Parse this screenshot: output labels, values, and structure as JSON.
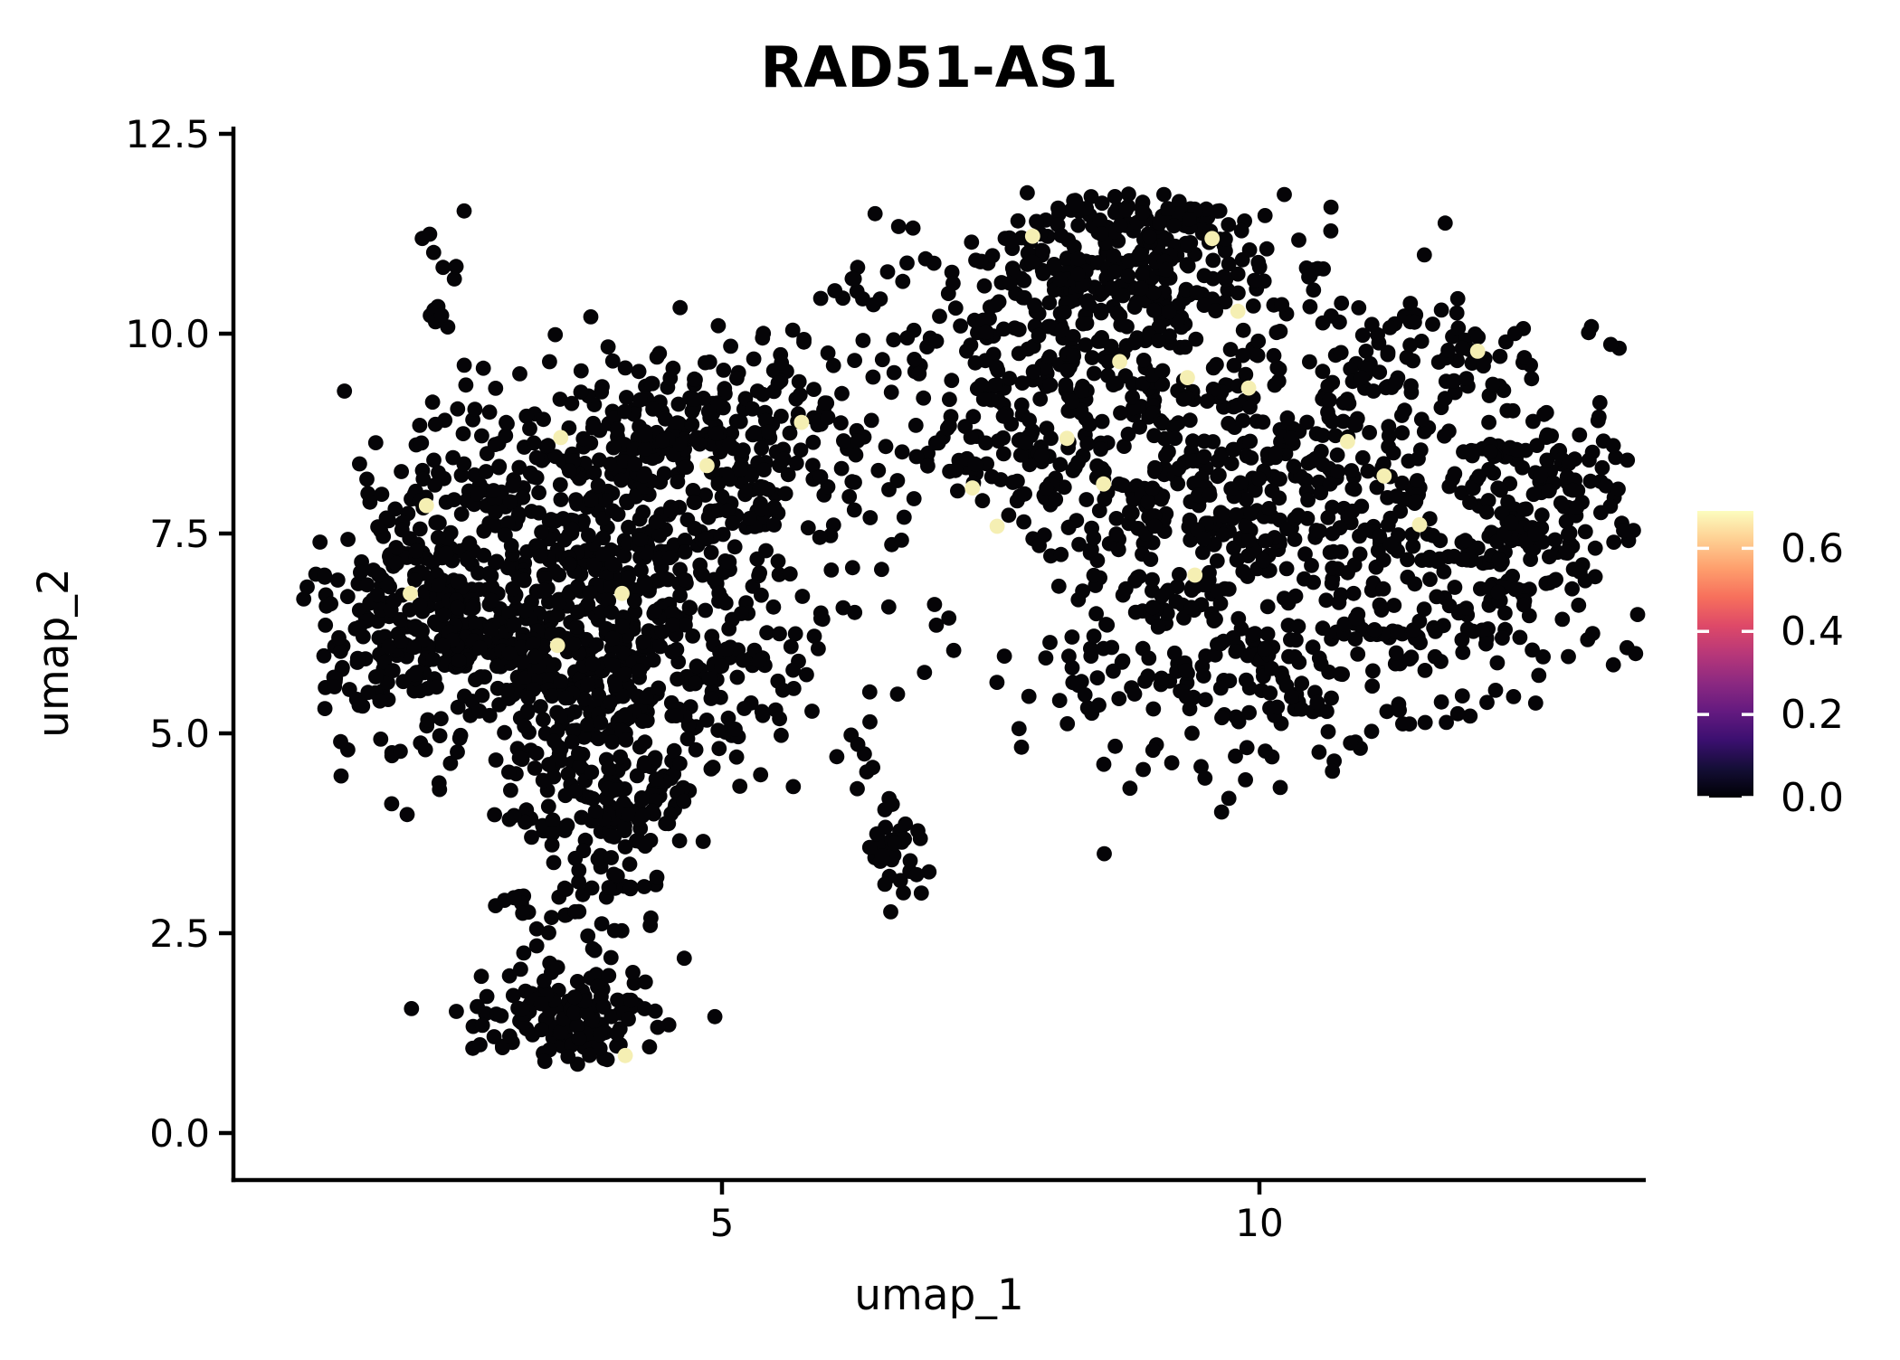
{
  "title": "RAD51-AS1",
  "axes": {
    "x_label": "umap_1",
    "y_label": "umap_2",
    "x_ticks": [
      {
        "value": 5,
        "label": "5"
      },
      {
        "value": 10,
        "label": "10"
      }
    ],
    "y_ticks": [
      {
        "value": 0.0,
        "label": "0.0"
      },
      {
        "value": 2.5,
        "label": "2.5"
      },
      {
        "value": 5.0,
        "label": "5.0"
      },
      {
        "value": 7.5,
        "label": "7.5"
      },
      {
        "value": 10.0,
        "label": "10.0"
      },
      {
        "value": 12.5,
        "label": "12.5"
      }
    ]
  },
  "colorbar": {
    "colormap": "magma",
    "vmax": 0.69,
    "tick_values": [
      0.0,
      0.2,
      0.4,
      0.6
    ],
    "tick_labels": [
      "0.0",
      "0.2",
      "0.4",
      "0.6"
    ],
    "gradient_bottom_to_top": [
      "#000004",
      "#140e36",
      "#3b0f70",
      "#641a80",
      "#8c2981",
      "#b73779",
      "#de4968",
      "#f7705c",
      "#fe9f6d",
      "#fecf92",
      "#fcfdbf"
    ]
  },
  "chart_data": {
    "type": "scatter",
    "title": "RAD51-AS1",
    "xlabel": "umap_1",
    "ylabel": "umap_2",
    "xlim": [
      0.45,
      13.6
    ],
    "ylim": [
      -0.6,
      12.6
    ],
    "x_ticks": [
      5,
      10
    ],
    "y_ticks": [
      0.0,
      2.5,
      5.0,
      7.5,
      10.0,
      12.5
    ],
    "grid": false,
    "legend": "colorbar-right",
    "point_color": "#050407",
    "highlight_color": "#f5efb3",
    "background": "#ffffff",
    "point_radius_px": 8.4,
    "n_points_estimate": 3200,
    "seed": 7,
    "clusters": [
      {
        "name": "left-core",
        "n": 400,
        "cx": 3.2,
        "cy": 6.3,
        "sdx": 0.9,
        "sdy": 0.8
      },
      {
        "name": "left-upper",
        "n": 300,
        "cx": 3.8,
        "cy": 8.0,
        "sdx": 0.9,
        "sdy": 0.7
      },
      {
        "name": "left-top-right",
        "n": 190,
        "cx": 5.0,
        "cy": 8.8,
        "sdx": 0.7,
        "sdy": 0.6
      },
      {
        "name": "left-west",
        "n": 180,
        "cx": 2.3,
        "cy": 6.6,
        "sdx": 0.55,
        "sdy": 0.85
      },
      {
        "name": "left-southeast",
        "n": 160,
        "cx": 4.6,
        "cy": 6.0,
        "sdx": 0.8,
        "sdy": 0.8
      },
      {
        "name": "tail-top",
        "n": 120,
        "cx": 4.0,
        "cy": 4.7,
        "sdx": 0.55,
        "sdy": 0.55
      },
      {
        "name": "tail-neck",
        "n": 110,
        "from": [
          4.25,
          4.4
        ],
        "to": [
          3.55,
          2.5
        ],
        "sd": 0.33
      },
      {
        "name": "tail-bottom-blob",
        "n": 135,
        "cx": 3.55,
        "cy": 1.45,
        "sdx": 0.45,
        "sdy": 0.33
      },
      {
        "name": "left-top-spur",
        "n": 14,
        "cx": 2.38,
        "cy": 10.55,
        "sdx": 0.13,
        "sdy": 0.45
      },
      {
        "name": "mid-top-pair",
        "n": 5,
        "cx": 6.28,
        "cy": 10.33,
        "sdx": 0.14,
        "sdy": 0.16
      },
      {
        "name": "right-core",
        "n": 360,
        "cx": 9.6,
        "cy": 8.0,
        "sdx": 1.05,
        "sdy": 0.95
      },
      {
        "name": "right-top-ridge",
        "n": 250,
        "cx": 8.9,
        "cy": 10.85,
        "sdx": 0.75,
        "sdy": 0.5
      },
      {
        "name": "right-top-clump",
        "n": 26,
        "cx": 9.0,
        "cy": 11.45,
        "sdx": 0.45,
        "sdy": 0.18
      },
      {
        "name": "right-upper-left",
        "n": 200,
        "cx": 8.3,
        "cy": 9.2,
        "sdx": 0.8,
        "sdy": 0.8
      },
      {
        "name": "right-east-arm",
        "n": 200,
        "cx": 11.6,
        "cy": 7.3,
        "sdx": 0.9,
        "sdy": 0.9
      },
      {
        "name": "far-right-ridge",
        "n": 130,
        "cx": 12.7,
        "cy": 7.7,
        "sdx": 0.42,
        "sdy": 0.75
      },
      {
        "name": "right-bottom-band",
        "n": 170,
        "cx": 9.7,
        "cy": 5.8,
        "sdx": 1.3,
        "sdy": 0.5
      },
      {
        "name": "right-top-east",
        "n": 110,
        "cx": 11.3,
        "cy": 9.6,
        "sdx": 0.8,
        "sdy": 0.55
      },
      {
        "name": "bridge-top-sparse",
        "n": 45,
        "cx": 7.3,
        "cy": 10.2,
        "sdx": 0.6,
        "sdy": 0.7
      },
      {
        "name": "right-low-strays",
        "n": 18,
        "cx": 10.0,
        "cy": 4.6,
        "sdx": 0.7,
        "sdy": 0.35
      },
      {
        "name": "small-mid-clump",
        "n": 32,
        "cx": 6.63,
        "cy": 3.55,
        "sdx": 0.14,
        "sdy": 0.24
      },
      {
        "name": "mid-trickle",
        "n": 10,
        "from": [
          6.15,
          5.2
        ],
        "to": [
          6.55,
          4.05
        ],
        "sd": 0.1
      },
      {
        "name": "bridge-sparse",
        "n": 50,
        "cx": 6.4,
        "cy": 8.8,
        "sdx": 0.65,
        "sdy": 1.0
      }
    ],
    "clip": {
      "xmin": 0.95,
      "xmax": 13.58,
      "ymin": 0.86,
      "ymax": 11.78
    },
    "highlight_points": [
      [
        3.5,
        8.7
      ],
      [
        4.86,
        8.35
      ],
      [
        2.25,
        7.85
      ],
      [
        2.1,
        6.75
      ],
      [
        4.07,
        6.75
      ],
      [
        3.47,
        6.1
      ],
      [
        5.74,
        8.89
      ],
      [
        4.1,
        0.97
      ],
      [
        7.89,
        11.22
      ],
      [
        9.56,
        11.19
      ],
      [
        9.8,
        10.28
      ],
      [
        8.7,
        9.65
      ],
      [
        9.33,
        9.45
      ],
      [
        9.9,
        9.32
      ],
      [
        12.03,
        9.78
      ],
      [
        8.21,
        8.69
      ],
      [
        8.55,
        8.12
      ],
      [
        7.33,
        8.07
      ],
      [
        7.56,
        7.59
      ],
      [
        10.82,
        8.65
      ],
      [
        11.16,
        8.22
      ],
      [
        11.49,
        7.61
      ],
      [
        9.4,
        6.98
      ]
    ]
  }
}
